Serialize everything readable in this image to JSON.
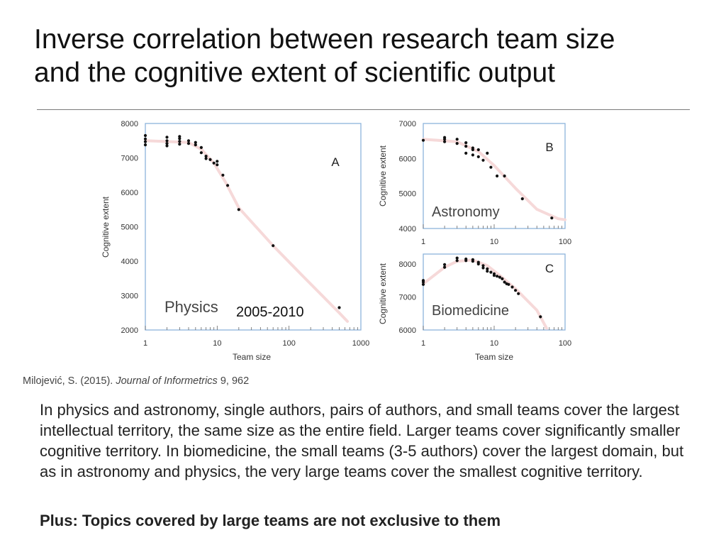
{
  "slide": {
    "title_line1": "Inverse correlation between research team size",
    "title_line2": "and the cognitive extent of scientific output",
    "citation_authors": "Milojević, S. (2015). ",
    "citation_journal": "Journal of Informetrics",
    "citation_rest": " 9, 962",
    "body_text": "In physics and astronomy, single authors, pairs of authors, and small teams cover the largest intellectual territory, the same size as the entire field. Larger teams cover significantly smaller cognitive territory. In biomedicine, the small teams (3-5 authors) cover the largest domain, but as in astronomy and physics, the very large teams cover the smallest cognitive territory.",
    "plus_text": "Plus: Topics covered by large teams are not exclusive to them"
  },
  "colors": {
    "trend": "#f6d9d9",
    "points": "#111111",
    "frame": "#8db3dc"
  },
  "chart_data": [
    {
      "id": "A",
      "type": "scatter",
      "panel_label": "A",
      "field": "Physics",
      "period": "2005-2010",
      "xlabel": "Team size",
      "ylabel": "Cognitive extent",
      "xscale": "log",
      "xlim": [
        1,
        1000
      ],
      "ylim": [
        2000,
        8000
      ],
      "xticks": [
        "1",
        "10",
        "100",
        "1000"
      ],
      "yticks": [
        "2000",
        "3000",
        "4000",
        "5000",
        "6000",
        "7000",
        "8000"
      ],
      "points": [
        [
          1,
          7650
        ],
        [
          1,
          7550
        ],
        [
          1,
          7470
        ],
        [
          1,
          7380
        ],
        [
          2,
          7600
        ],
        [
          2,
          7500
        ],
        [
          2,
          7420
        ],
        [
          2,
          7350
        ],
        [
          3,
          7620
        ],
        [
          3,
          7560
        ],
        [
          3,
          7480
        ],
        [
          3,
          7400
        ],
        [
          4,
          7500
        ],
        [
          4,
          7420
        ],
        [
          5,
          7450
        ],
        [
          5,
          7380
        ],
        [
          6,
          7300
        ],
        [
          6,
          7150
        ],
        [
          7,
          7050
        ],
        [
          7,
          6980
        ],
        [
          8,
          6950
        ],
        [
          9,
          6850
        ],
        [
          10,
          6900
        ],
        [
          10,
          6800
        ],
        [
          12,
          6500
        ],
        [
          14,
          6200
        ],
        [
          20,
          5500
        ],
        [
          60,
          4450
        ],
        [
          500,
          2650
        ]
      ],
      "trend": [
        [
          1,
          7500
        ],
        [
          4,
          7450
        ],
        [
          6,
          7250
        ],
        [
          9,
          6850
        ],
        [
          13,
          6300
        ],
        [
          20,
          5550
        ],
        [
          60,
          4450
        ],
        [
          150,
          3600
        ],
        [
          500,
          2500
        ],
        [
          650,
          2250
        ]
      ]
    },
    {
      "id": "B",
      "type": "scatter",
      "panel_label": "B",
      "field": "Astronomy",
      "xlabel": "",
      "ylabel": "Cognitive extent",
      "xscale": "log",
      "xlim": [
        1,
        100
      ],
      "ylim": [
        4000,
        7000
      ],
      "xticks": [
        "1",
        "10",
        "100"
      ],
      "yticks": [
        "4000",
        "5000",
        "6000",
        "7000"
      ],
      "points": [
        [
          1,
          6520
        ],
        [
          2,
          6600
        ],
        [
          2,
          6550
        ],
        [
          2,
          6480
        ],
        [
          3,
          6550
        ],
        [
          3,
          6430
        ],
        [
          4,
          6450
        ],
        [
          4,
          6350
        ],
        [
          4,
          6150
        ],
        [
          5,
          6300
        ],
        [
          5,
          6250
        ],
        [
          5,
          6100
        ],
        [
          6,
          6250
        ],
        [
          6,
          6050
        ],
        [
          7,
          5950
        ],
        [
          8,
          6150
        ],
        [
          9,
          5750
        ],
        [
          11,
          5500
        ],
        [
          14,
          5500
        ],
        [
          25,
          4850
        ],
        [
          65,
          4300
        ]
      ],
      "trend": [
        [
          1,
          6550
        ],
        [
          3,
          6480
        ],
        [
          6,
          6200
        ],
        [
          10,
          5800
        ],
        [
          20,
          5150
        ],
        [
          40,
          4550
        ],
        [
          80,
          4280
        ],
        [
          100,
          4250
        ]
      ]
    },
    {
      "id": "C",
      "type": "scatter",
      "panel_label": "C",
      "field": "Biomedicine",
      "xlabel": "Team size",
      "ylabel": "Cognitive extent",
      "xscale": "log",
      "xlim": [
        1,
        100
      ],
      "ylim": [
        6000,
        8300
      ],
      "xticks": [
        "1",
        "10",
        "100"
      ],
      "yticks": [
        "6000",
        "7000",
        "8000"
      ],
      "points": [
        [
          1,
          7500
        ],
        [
          1,
          7450
        ],
        [
          1,
          7380
        ],
        [
          2,
          7980
        ],
        [
          2,
          7900
        ],
        [
          3,
          8100
        ],
        [
          3,
          8180
        ],
        [
          4,
          8150
        ],
        [
          4,
          8100
        ],
        [
          5,
          8130
        ],
        [
          5,
          8080
        ],
        [
          6,
          8050
        ],
        [
          6,
          8000
        ],
        [
          7,
          7950
        ],
        [
          7,
          7880
        ],
        [
          8,
          7850
        ],
        [
          8,
          7780
        ],
        [
          9,
          7750
        ],
        [
          10,
          7700
        ],
        [
          10,
          7650
        ],
        [
          11,
          7630
        ],
        [
          12,
          7600
        ],
        [
          13,
          7550
        ],
        [
          14,
          7450
        ],
        [
          15,
          7400
        ],
        [
          16,
          7380
        ],
        [
          18,
          7300
        ],
        [
          20,
          7200
        ],
        [
          22,
          7100
        ],
        [
          45,
          6400
        ]
      ],
      "trend": [
        [
          1,
          7400
        ],
        [
          2,
          7900
        ],
        [
          3,
          8080
        ],
        [
          5,
          8120
        ],
        [
          8,
          7950
        ],
        [
          12,
          7650
        ],
        [
          20,
          7250
        ],
        [
          40,
          6600
        ],
        [
          55,
          6050
        ]
      ]
    }
  ]
}
